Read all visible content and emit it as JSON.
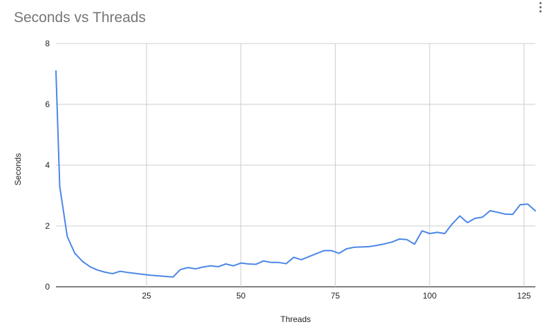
{
  "chart_data": {
    "type": "line",
    "title": "Seconds vs Threads",
    "xlabel": "Threads",
    "ylabel": "Seconds",
    "xlim": [
      1,
      128
    ],
    "ylim": [
      0,
      8
    ],
    "xticks": [
      25,
      50,
      75,
      100,
      125
    ],
    "yticks": [
      0,
      2,
      4,
      6,
      8
    ],
    "grid": true,
    "legend": "none",
    "series": [
      {
        "color": "#4a86e8",
        "x": [
          1,
          2,
          4,
          6,
          8,
          10,
          12,
          14,
          16,
          18,
          20,
          22,
          24,
          26,
          28,
          30,
          32,
          34,
          36,
          38,
          40,
          42,
          44,
          46,
          48,
          50,
          52,
          54,
          56,
          58,
          60,
          62,
          64,
          66,
          68,
          70,
          72,
          74,
          76,
          78,
          80,
          82,
          84,
          86,
          88,
          90,
          92,
          94,
          96,
          98,
          100,
          102,
          104,
          106,
          108,
          110,
          112,
          114,
          116,
          118,
          120,
          122,
          124,
          126,
          128
        ],
        "values": [
          7.1,
          3.3,
          1.65,
          1.1,
          0.84,
          0.66,
          0.55,
          0.48,
          0.43,
          0.51,
          0.47,
          0.44,
          0.41,
          0.38,
          0.36,
          0.34,
          0.32,
          0.57,
          0.63,
          0.59,
          0.65,
          0.69,
          0.66,
          0.75,
          0.69,
          0.78,
          0.75,
          0.74,
          0.85,
          0.8,
          0.8,
          0.76,
          0.97,
          0.89,
          0.99,
          1.09,
          1.19,
          1.19,
          1.1,
          1.25,
          1.3,
          1.31,
          1.32,
          1.36,
          1.41,
          1.47,
          1.57,
          1.55,
          1.4,
          1.84,
          1.75,
          1.79,
          1.75,
          2.07,
          2.33,
          2.11,
          2.25,
          2.29,
          2.5,
          2.45,
          2.39,
          2.38,
          2.7,
          2.72,
          2.5
        ]
      }
    ]
  },
  "colors": {
    "line": "#4a86e8",
    "grid": "#cccccc",
    "title": "#757575",
    "axis_text": "#222222"
  },
  "icons": {
    "menu": "more-vert-icon"
  }
}
